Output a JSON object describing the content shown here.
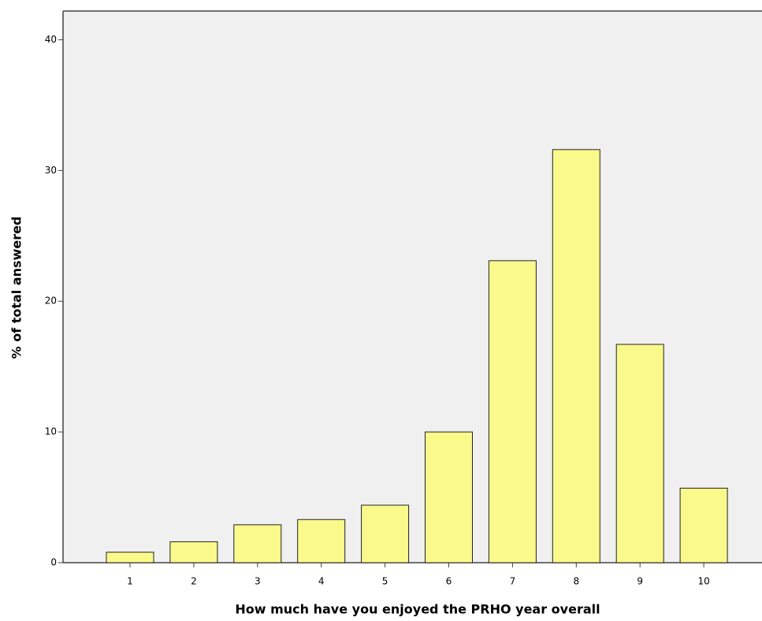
{
  "chart_data": {
    "type": "bar",
    "x_label": "How much have you enjoyed the PRHO year overall",
    "y_label": "% of total answered",
    "categories": [
      "1",
      "2",
      "3",
      "4",
      "5",
      "6",
      "7",
      "8",
      "9",
      "10"
    ],
    "values": [
      0.8,
      1.6,
      2.9,
      3.3,
      4.4,
      10.0,
      23.1,
      31.6,
      16.7,
      5.7
    ],
    "color": "#fafa8c",
    "ylim": [
      0,
      42.2
    ],
    "yticks": [
      0,
      10,
      20,
      30,
      40
    ],
    "grid": false
  }
}
